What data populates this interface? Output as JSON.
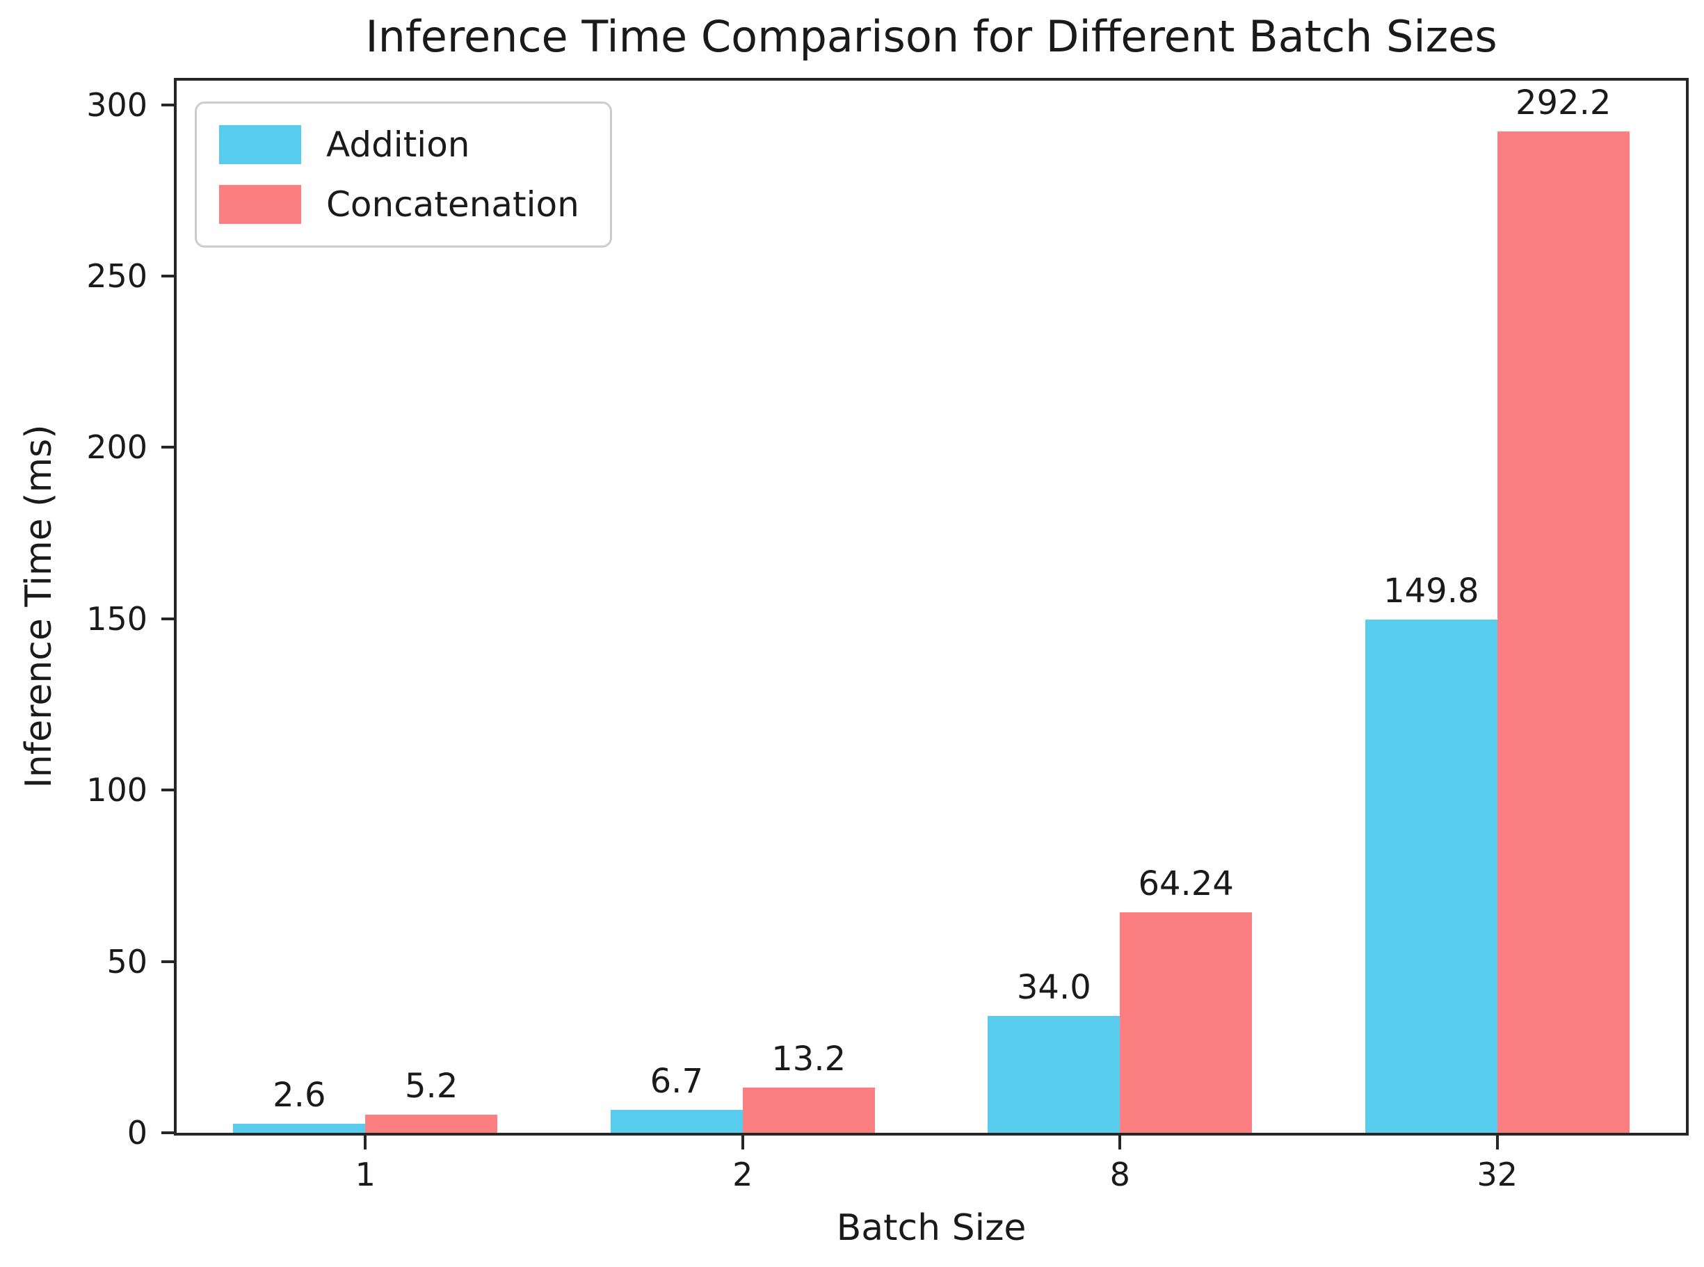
{
  "chart_data": {
    "type": "bar",
    "title": "Inference Time Comparison for Different Batch Sizes",
    "xlabel": "Batch Size",
    "ylabel": "Inference Time (ms)",
    "categories": [
      "1",
      "2",
      "8",
      "32"
    ],
    "series": [
      {
        "name": "Addition",
        "color": "#57CCEC",
        "values": [
          2.6,
          6.7,
          34.0,
          149.8
        ],
        "labels": [
          "2.6",
          "6.7",
          "34.0",
          "149.8"
        ]
      },
      {
        "name": "Concatenation",
        "color": "#FB7F81",
        "values": [
          5.2,
          13.2,
          64.24,
          292.2
        ],
        "labels": [
          "5.2",
          "13.2",
          "64.24",
          "292.2"
        ]
      }
    ],
    "ylim": [
      0,
      307
    ],
    "yticks": [
      0,
      50,
      100,
      150,
      200,
      250,
      300
    ],
    "bar_width_frac": 0.35,
    "legend_position": "upper left",
    "grid": false,
    "axis_color": "#262626",
    "text_color": "#1a1a1a"
  }
}
